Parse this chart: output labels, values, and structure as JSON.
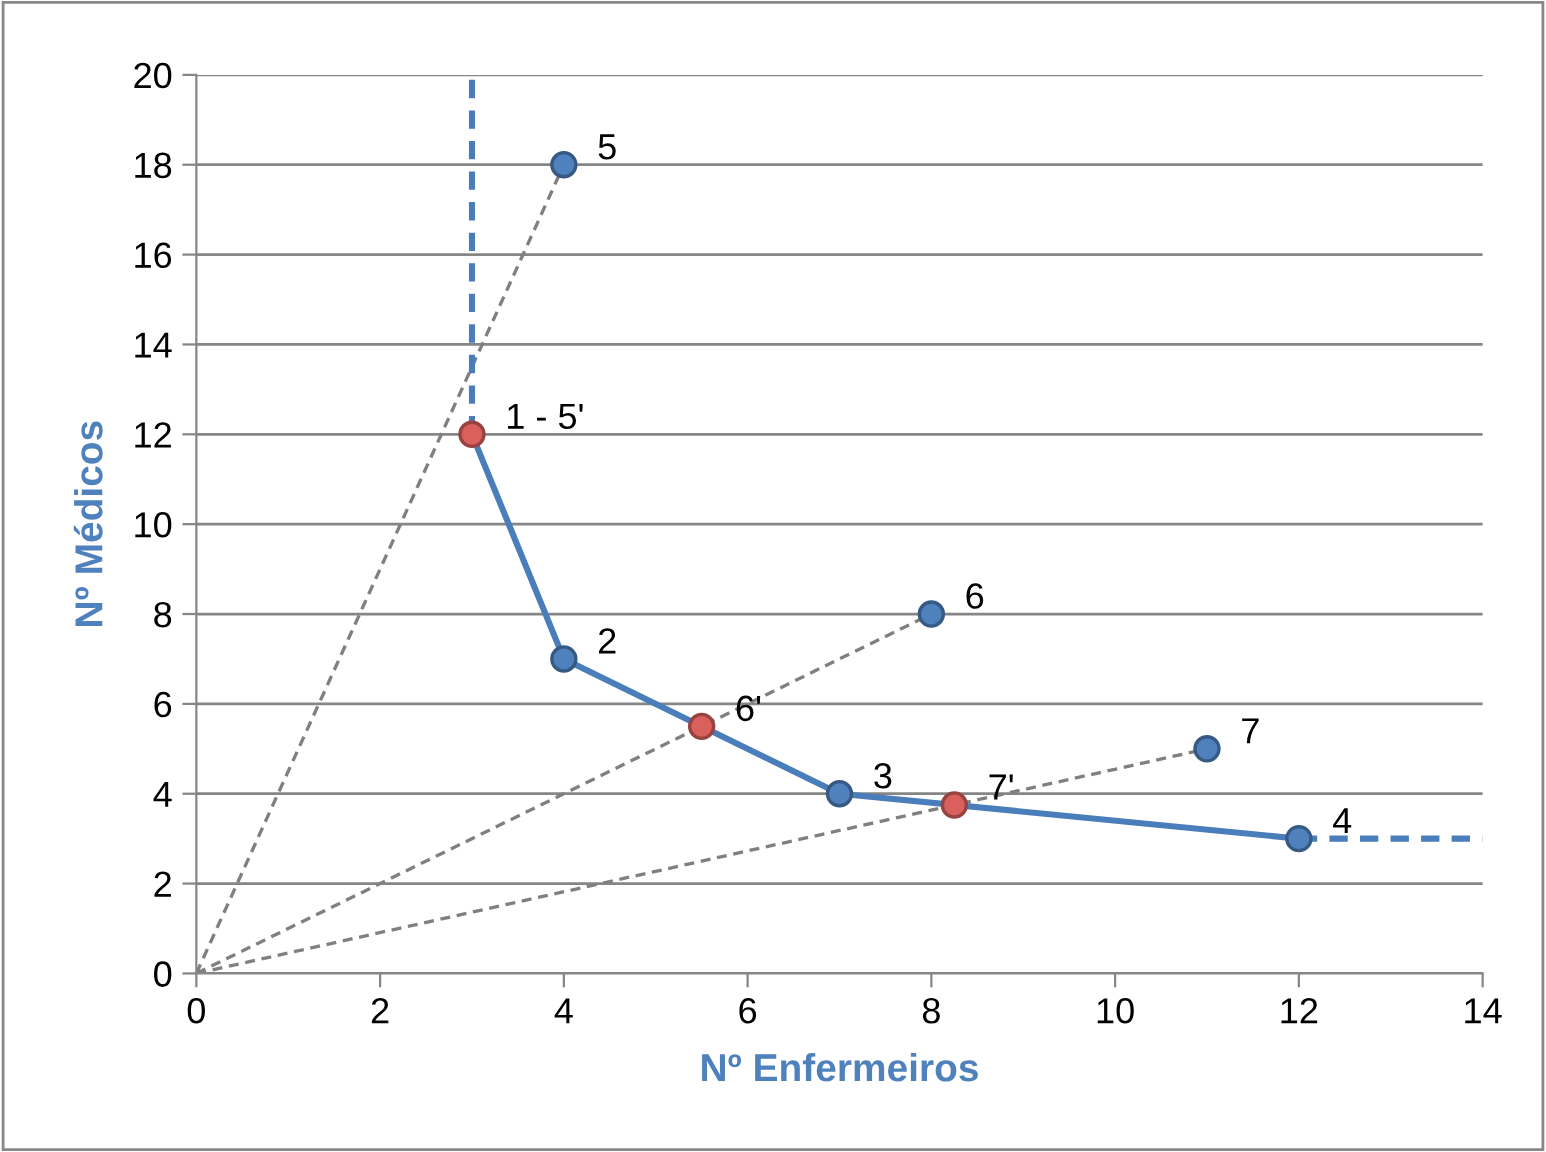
{
  "chart_data": {
    "type": "line",
    "xlabel": "Nº Enfermeiros",
    "ylabel": "Nº Médicos",
    "xlim": [
      0,
      14
    ],
    "xticks": [
      0,
      2,
      4,
      6,
      8,
      10,
      12,
      14
    ],
    "ylim": [
      0,
      20
    ],
    "yticks": [
      0,
      2,
      4,
      6,
      8,
      10,
      12,
      14,
      16,
      18,
      20
    ],
    "grid": "y",
    "series": [
      {
        "color": "#808080",
        "line_style": "dashed",
        "marker": "none",
        "x": [
          0,
          4
        ],
        "values": [
          0,
          18
        ]
      },
      {
        "color": "#808080",
        "line_style": "dashed",
        "marker": "none",
        "x": [
          0,
          8
        ],
        "values": [
          0,
          8
        ]
      },
      {
        "color": "#808080",
        "line_style": "dashed",
        "marker": "none",
        "x": [
          0,
          11
        ],
        "values": [
          0,
          5
        ]
      },
      {
        "color": "#4a7ebb",
        "line_style": "dashed",
        "marker": "none",
        "x": [
          3,
          3
        ],
        "values": [
          12,
          20
        ]
      },
      {
        "color": "#4a7ebb",
        "line_style": "dashed",
        "marker": "none",
        "x": [
          12,
          14
        ],
        "values": [
          3,
          3
        ]
      },
      {
        "color": "#4a7ebb",
        "line_style": "solid",
        "marker": "none",
        "x": [
          3,
          4,
          7,
          12
        ],
        "values": [
          12,
          7,
          4,
          3
        ]
      },
      {
        "type": "scatter",
        "color": "#4f81bd",
        "marker": "circle",
        "x": [
          4,
          7,
          12,
          4,
          8,
          11
        ],
        "values": [
          7,
          4,
          3,
          18,
          8,
          5
        ]
      },
      {
        "type": "scatter",
        "color": "#d9605c",
        "marker": "circle",
        "x": [
          3,
          5.5,
          8.25
        ],
        "values": [
          12,
          5.5,
          3.75
        ]
      }
    ],
    "annotations": [
      {
        "text": "1 - 5'",
        "x": 3,
        "y": 12
      },
      {
        "text": "2",
        "x": 4,
        "y": 7
      },
      {
        "text": "6'",
        "x": 5.5,
        "y": 5.5
      },
      {
        "text": "3",
        "x": 7,
        "y": 4
      },
      {
        "text": "7'",
        "x": 8.25,
        "y": 3.75
      },
      {
        "text": "4",
        "x": 12,
        "y": 3
      },
      {
        "text": "5",
        "x": 4,
        "y": 18
      },
      {
        "text": "6",
        "x": 8,
        "y": 8
      },
      {
        "text": "7",
        "x": 11,
        "y": 5
      }
    ]
  }
}
